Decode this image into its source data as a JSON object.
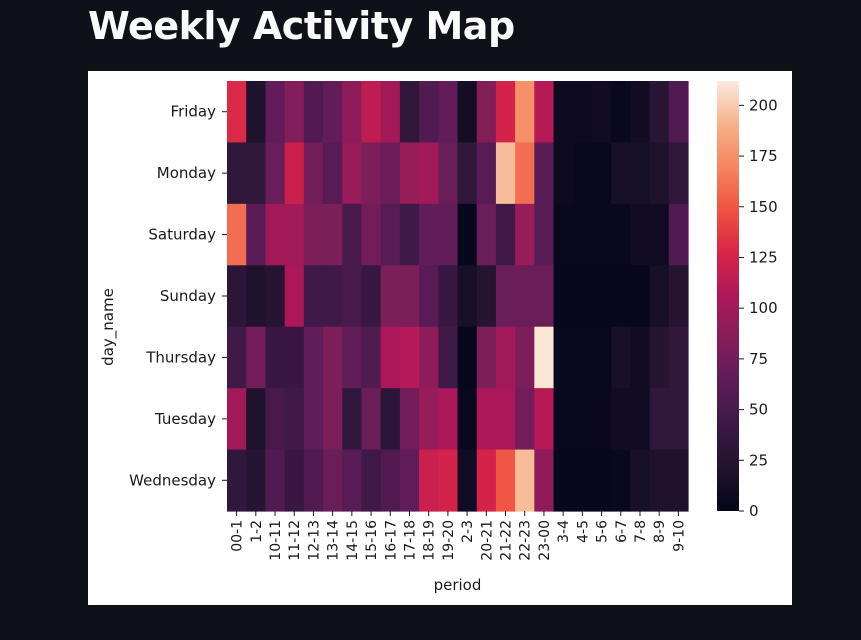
{
  "page": {
    "title": "Weekly Activity Map"
  },
  "chart_data": {
    "type": "heatmap",
    "xlabel": "period",
    "ylabel": "day_name",
    "x": [
      "00-1",
      "1-2",
      "10-11",
      "11-12",
      "12-13",
      "13-14",
      "14-15",
      "15-16",
      "16-17",
      "17-18",
      "18-19",
      "19-20",
      "2-3",
      "20-21",
      "21-22",
      "22-23",
      "23-00",
      "3-4",
      "4-5",
      "5-6",
      "6-7",
      "7-8",
      "8-9",
      "9-10"
    ],
    "y": [
      "Friday",
      "Monday",
      "Saturday",
      "Sunday",
      "Thursday",
      "Tuesday",
      "Wednesday"
    ],
    "values": [
      [
        130,
        20,
        65,
        85,
        55,
        65,
        90,
        115,
        100,
        35,
        55,
        65,
        12,
        85,
        125,
        175,
        110,
        8,
        8,
        10,
        5,
        10,
        28,
        55
      ],
      [
        35,
        35,
        70,
        120,
        75,
        60,
        95,
        80,
        70,
        95,
        100,
        70,
        35,
        60,
        195,
        160,
        60,
        8,
        5,
        5,
        15,
        15,
        20,
        35
      ],
      [
        160,
        60,
        100,
        100,
        80,
        80,
        50,
        75,
        60,
        45,
        65,
        65,
        3,
        70,
        45,
        95,
        60,
        5,
        5,
        5,
        5,
        10,
        10,
        55
      ],
      [
        30,
        20,
        25,
        105,
        45,
        45,
        50,
        40,
        80,
        80,
        60,
        40,
        15,
        25,
        70,
        70,
        70,
        3,
        3,
        3,
        3,
        3,
        15,
        25
      ],
      [
        45,
        75,
        40,
        40,
        65,
        80,
        65,
        55,
        105,
        110,
        90,
        45,
        3,
        80,
        100,
        80,
        210,
        5,
        5,
        5,
        15,
        10,
        25,
        35
      ],
      [
        100,
        20,
        50,
        45,
        65,
        80,
        35,
        70,
        30,
        75,
        95,
        105,
        5,
        105,
        105,
        75,
        110,
        5,
        5,
        5,
        10,
        10,
        35,
        35
      ],
      [
        35,
        25,
        55,
        40,
        55,
        70,
        60,
        45,
        55,
        65,
        120,
        125,
        10,
        125,
        150,
        195,
        90,
        3,
        3,
        3,
        5,
        15,
        20,
        20
      ]
    ],
    "vmin": 0,
    "vmax": 212,
    "colorbar_ticks": [
      0,
      25,
      50,
      75,
      100,
      125,
      150,
      175,
      200
    ],
    "colormap": "rocket",
    "grid": false
  }
}
